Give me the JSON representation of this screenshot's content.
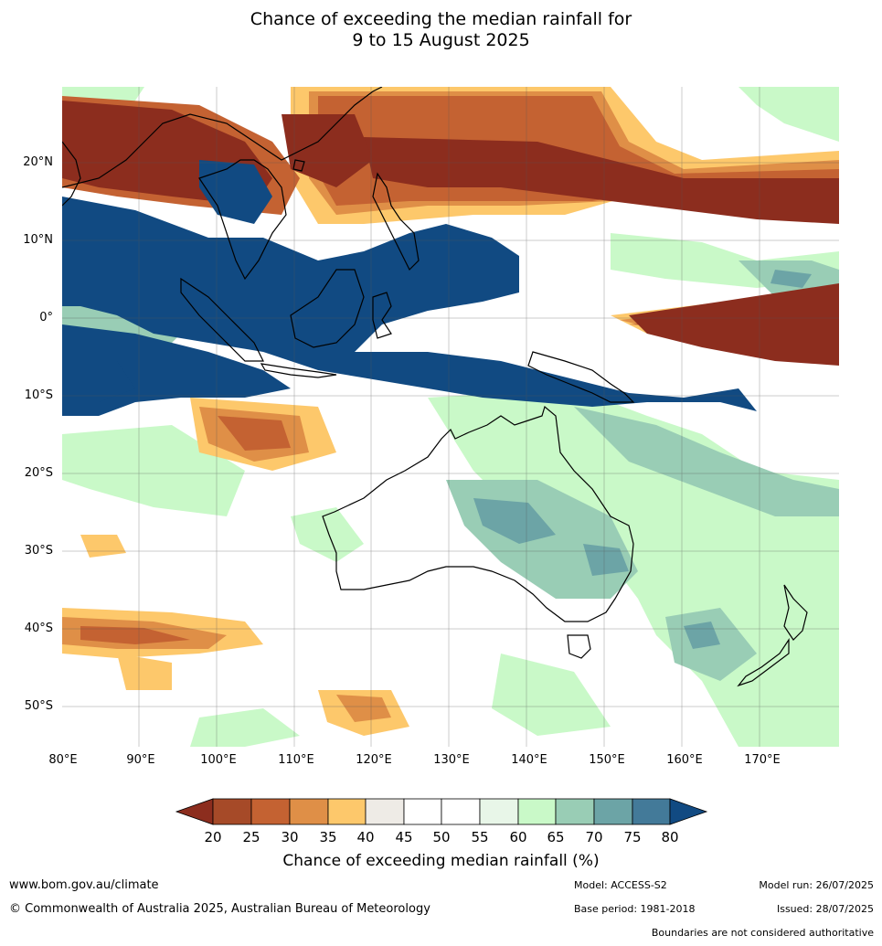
{
  "title": {
    "line1": "Chance of exceeding the median rainfall for",
    "line2": "9 to 15 August 2025"
  },
  "map": {
    "region": "Indo-Pacific and Australia",
    "lat_labels": [
      "20°N",
      "10°N",
      "0°",
      "10°S",
      "20°S",
      "30°S",
      "40°S",
      "50°S"
    ],
    "lon_labels": [
      "80°E",
      "90°E",
      "100°E",
      "110°E",
      "120°E",
      "130°E",
      "140°E",
      "150°E",
      "160°E",
      "170°E"
    ]
  },
  "colorbar": {
    "title": "Chance of exceeding median rainfall (%)",
    "ticks": [
      "20",
      "25",
      "30",
      "35",
      "40",
      "45",
      "50",
      "55",
      "60",
      "65",
      "70",
      "75",
      "80"
    ],
    "colors": {
      "below20": "#8c2d1e",
      "20-25": "#a64a28",
      "25-30": "#c46232",
      "30-35": "#df8f47",
      "35-40": "#fdc86b",
      "40-45": "#eeebe6",
      "45-50": "#ffffff",
      "50-55": "#ffffff",
      "55-60": "#e8f6e8",
      "60-65": "#c9f9c8",
      "65-70": "#99cdb5",
      "70-75": "#6ca4a6",
      "75-80": "#437a99",
      "above80": "#114a82"
    }
  },
  "footer": {
    "website": "www.bom.gov.au/climate",
    "copyright": "© Commonwealth of Australia 2025, Australian Bureau of Meteorology",
    "model": "Model: ACCESS-S2",
    "base_period": "Base period: 1981-2018",
    "model_run": "Model run: 26/07/2025",
    "issued": "Issued: 28/07/2025",
    "disclaimer": "Boundaries are not considered authoritative"
  }
}
